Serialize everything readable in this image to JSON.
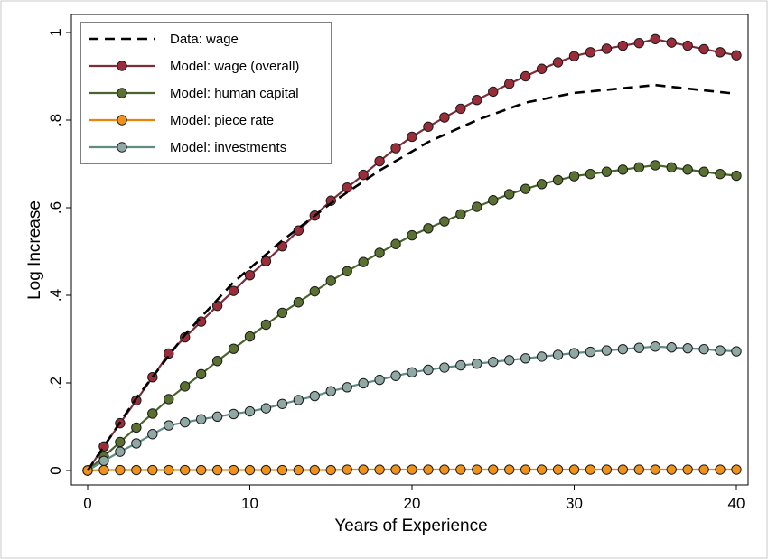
{
  "chart_data": {
    "type": "line",
    "title": "",
    "xlabel": "Years of Experience",
    "ylabel": "Log Increase",
    "xlim": [
      0,
      40
    ],
    "ylim": [
      0,
      1
    ],
    "xticks": [
      0,
      10,
      20,
      30,
      40
    ],
    "xtick_labels": [
      "0",
      "10",
      "20",
      "30",
      "40"
    ],
    "yticks": [
      0,
      0.2,
      0.4,
      0.6,
      0.8,
      1
    ],
    "ytick_labels": [
      "0",
      ".2",
      ".4",
      ".6",
      ".8",
      "1"
    ],
    "grid": false,
    "legend_position": "top-left",
    "x": [
      0,
      1,
      2,
      3,
      4,
      5,
      6,
      7,
      8,
      9,
      10,
      11,
      12,
      13,
      14,
      15,
      16,
      17,
      18,
      19,
      20,
      21,
      22,
      23,
      24,
      25,
      26,
      27,
      28,
      29,
      30,
      31,
      32,
      33,
      34,
      35,
      36,
      37,
      38,
      39,
      40
    ],
    "series": [
      {
        "name": "Data: wage",
        "style": "dashed",
        "color": "#000000",
        "x": [
          0,
          3,
          6,
          9,
          12,
          15,
          18,
          21,
          24,
          27,
          30,
          35,
          40
        ],
        "values": [
          0,
          0.165,
          0.31,
          0.43,
          0.525,
          0.61,
          0.685,
          0.75,
          0.8,
          0.84,
          0.862,
          0.88,
          0.86
        ]
      },
      {
        "name": "Model: wage (overall)",
        "style": "line-markers",
        "color": "#7a2e38",
        "marker_color": "#9b2d3b",
        "values": [
          0,
          0.055,
          0.108,
          0.16,
          0.213,
          0.267,
          0.304,
          0.34,
          0.376,
          0.41,
          0.446,
          0.478,
          0.512,
          0.548,
          0.582,
          0.616,
          0.646,
          0.675,
          0.706,
          0.736,
          0.762,
          0.785,
          0.806,
          0.826,
          0.846,
          0.865,
          0.883,
          0.9,
          0.917,
          0.932,
          0.946,
          0.955,
          0.963,
          0.97,
          0.976,
          0.985,
          0.977,
          0.97,
          0.962,
          0.955,
          0.948
        ]
      },
      {
        "name": "Model: human capital",
        "style": "line-markers",
        "color": "#49652c",
        "marker_color": "#5a7132",
        "values": [
          0,
          0.032,
          0.065,
          0.098,
          0.13,
          0.163,
          0.192,
          0.22,
          0.25,
          0.278,
          0.306,
          0.333,
          0.36,
          0.384,
          0.409,
          0.433,
          0.455,
          0.476,
          0.497,
          0.517,
          0.537,
          0.553,
          0.569,
          0.585,
          0.602,
          0.617,
          0.631,
          0.643,
          0.654,
          0.663,
          0.672,
          0.677,
          0.682,
          0.687,
          0.692,
          0.697,
          0.692,
          0.687,
          0.682,
          0.677,
          0.673
        ]
      },
      {
        "name": "Model: piece rate",
        "style": "line-markers",
        "color": "#e8850a",
        "marker_color": "#f0921a",
        "values": [
          0,
          0.001,
          0.001,
          0.001,
          0.001,
          0.001,
          0.001,
          0.001,
          0.001,
          0.001,
          0.001,
          0.001,
          0.001,
          0.001,
          0.001,
          0.001,
          0.002,
          0.002,
          0.002,
          0.002,
          0.002,
          0.002,
          0.002,
          0.002,
          0.002,
          0.002,
          0.002,
          0.002,
          0.002,
          0.002,
          0.002,
          0.002,
          0.002,
          0.002,
          0.002,
          0.002,
          0.002,
          0.002,
          0.002,
          0.002,
          0.002
        ]
      },
      {
        "name": "Model: investments",
        "style": "line-markers",
        "color": "#5f8b80",
        "marker_color": "#8fa8a3",
        "values": [
          0,
          0.022,
          0.043,
          0.062,
          0.083,
          0.103,
          0.11,
          0.117,
          0.123,
          0.129,
          0.135,
          0.142,
          0.152,
          0.161,
          0.17,
          0.181,
          0.19,
          0.199,
          0.207,
          0.216,
          0.224,
          0.23,
          0.235,
          0.24,
          0.244,
          0.248,
          0.252,
          0.256,
          0.26,
          0.264,
          0.268,
          0.271,
          0.274,
          0.277,
          0.28,
          0.283,
          0.281,
          0.279,
          0.277,
          0.274,
          0.272
        ]
      }
    ]
  }
}
